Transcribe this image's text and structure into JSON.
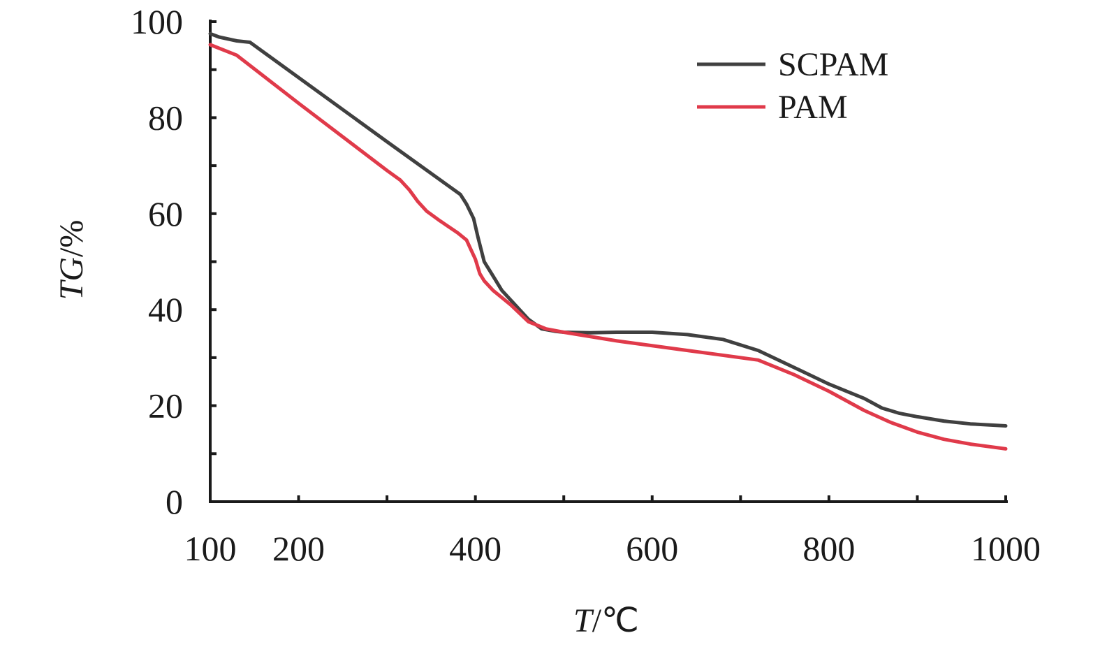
{
  "chart_data": {
    "type": "line",
    "xlabel": {
      "var": "T",
      "unit": "/℃"
    },
    "ylabel": {
      "var": "TG",
      "unit": "/%"
    },
    "xlim": [
      100,
      1000
    ],
    "ylim": [
      0,
      100
    ],
    "x_ticks": [
      100,
      200,
      400,
      600,
      800,
      1000
    ],
    "x_minor_ticks": [
      300,
      500,
      700,
      900
    ],
    "y_ticks": [
      0,
      20,
      40,
      60,
      80,
      100
    ],
    "y_minor_ticks": [
      10,
      30,
      50,
      70,
      90
    ],
    "grid": false,
    "legend_position": "top-right",
    "series": [
      {
        "name": "SCPAM",
        "color": "#404040",
        "x": [
          100,
          110,
          130,
          145,
          300,
          383,
          390,
          398,
          403,
          410,
          420,
          430,
          445,
          460,
          475,
          490,
          500,
          530,
          560,
          600,
          640,
          680,
          720,
          760,
          800,
          840,
          860,
          880,
          900,
          930,
          960,
          1000
        ],
        "y": [
          97.5,
          96.8,
          96,
          95.7,
          75,
          64,
          62,
          59,
          55,
          50,
          47,
          44,
          41,
          38,
          36,
          35.5,
          35.3,
          35.2,
          35.3,
          35.3,
          34.8,
          33.8,
          31.5,
          28,
          24.5,
          21.5,
          19.5,
          18.4,
          17.7,
          16.8,
          16.2,
          15.8
        ]
      },
      {
        "name": "PAM",
        "color": "#e03a4a",
        "x": [
          100,
          130,
          200,
          300,
          315,
          325,
          335,
          345,
          360,
          380,
          390,
          395,
          400,
          405,
          410,
          420,
          440,
          460,
          480,
          500,
          560,
          640,
          720,
          760,
          800,
          840,
          870,
          900,
          930,
          960,
          1000
        ],
        "y": [
          95.2,
          93,
          83,
          69,
          67,
          65,
          62.5,
          60.5,
          58.5,
          56,
          54.5,
          52.5,
          50.5,
          47.5,
          46,
          44,
          41,
          37.5,
          36,
          35.3,
          33.5,
          31.5,
          29.5,
          26.5,
          23,
          19,
          16.5,
          14.5,
          13,
          12,
          11
        ]
      }
    ]
  }
}
